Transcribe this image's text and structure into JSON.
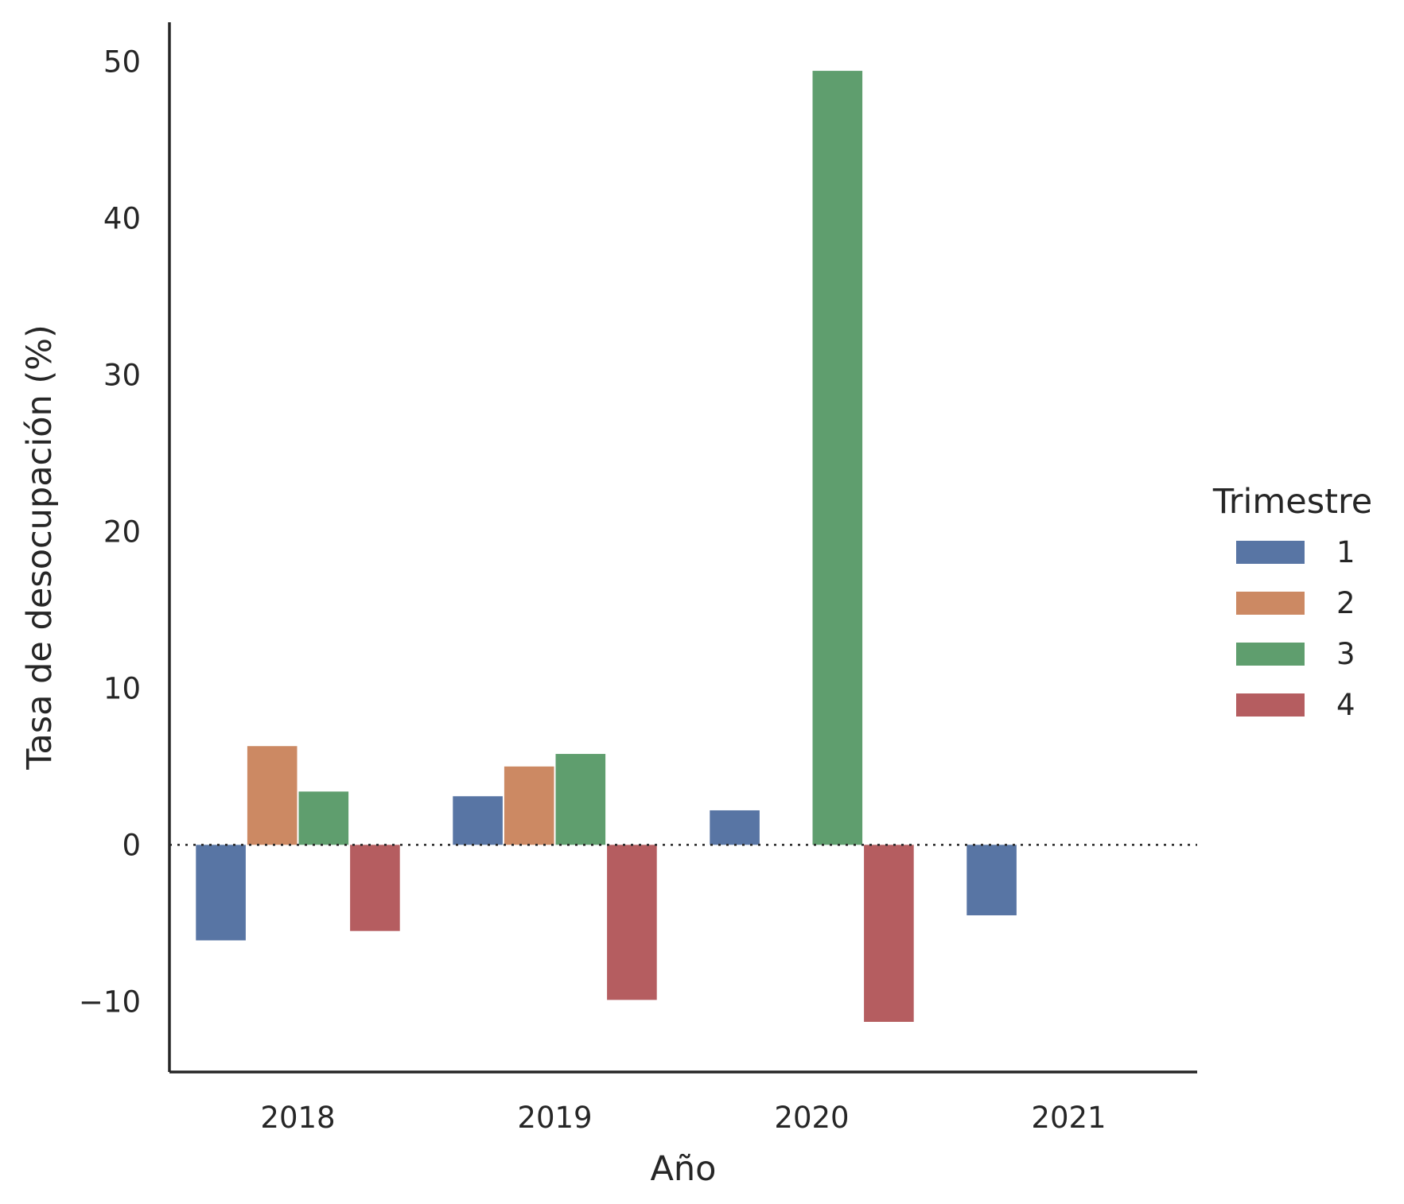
{
  "chart_data": {
    "type": "bar",
    "xlabel": "Año",
    "ylabel": "Tasa de desocupación (%)",
    "categories": [
      "2018",
      "2019",
      "2020",
      "2021"
    ],
    "ylim": [
      -14.5,
      52.5
    ],
    "yticks": [
      -10,
      0,
      10,
      20,
      30,
      40,
      50
    ],
    "ytick_labels": [
      "−10",
      "0",
      "10",
      "20",
      "30",
      "40",
      "50"
    ],
    "reference_line": {
      "y": 0,
      "style": "dotted"
    },
    "grid": false,
    "legend": {
      "title": "Trimestre",
      "position": "right"
    },
    "series": [
      {
        "name": "1",
        "color": "#5875a4",
        "values": [
          -6.1,
          3.1,
          2.2,
          -4.5
        ]
      },
      {
        "name": "2",
        "color": "#cc8963",
        "values": [
          6.3,
          5.0,
          null,
          null
        ]
      },
      {
        "name": "3",
        "color": "#5f9e6e",
        "values": [
          3.4,
          5.8,
          49.4,
          null
        ]
      },
      {
        "name": "4",
        "color": "#b55d60",
        "values": [
          -5.5,
          -9.9,
          -11.3,
          null
        ]
      }
    ]
  }
}
